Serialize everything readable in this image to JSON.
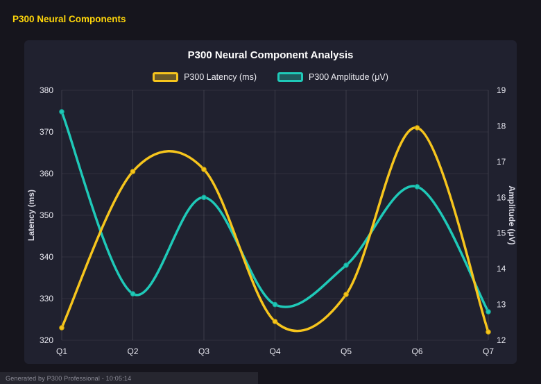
{
  "page": {
    "header": "P300 Neural Components",
    "footer": "Generated by P300 Professional - 10:05:14"
  },
  "colors": {
    "accent": "#ffd60a",
    "page_bg": "#16151d",
    "panel_bg": "#20212f",
    "grid_vertical": "rgba(255,255,255,0.12)",
    "grid_horizontal": "rgba(255,255,255,0.07)",
    "axis_text": "#e8e8f0",
    "axis_title": "#d9d9e3"
  },
  "chart_data": {
    "type": "line",
    "title": "P300 Neural Component Analysis",
    "categories": [
      "Q1",
      "Q2",
      "Q3",
      "Q4",
      "Q5",
      "Q6",
      "Q7"
    ],
    "series": [
      {
        "key": "latency",
        "name": "P300 Latency (ms)",
        "axis": "left",
        "color": "#f6c51d",
        "marker_stroke": "#d4a90b",
        "values": [
          323,
          360.5,
          361,
          324.5,
          331,
          371,
          322
        ]
      },
      {
        "key": "amplitude",
        "name": "P300 Amplitude (μV)",
        "axis": "right",
        "color": "#1fc9b8",
        "marker_stroke": "#17a899",
        "values": [
          18.4,
          13.3,
          16,
          13,
          14.1,
          16.3,
          12.8
        ]
      }
    ],
    "left_axis": {
      "label": "Latency (ms)",
      "min": 320,
      "max": 380,
      "step": 10
    },
    "right_axis": {
      "label": "Amplitude (μV)",
      "min": 12,
      "max": 19,
      "step": 1
    },
    "grid": true,
    "legend_position": "top",
    "smooth": true
  }
}
